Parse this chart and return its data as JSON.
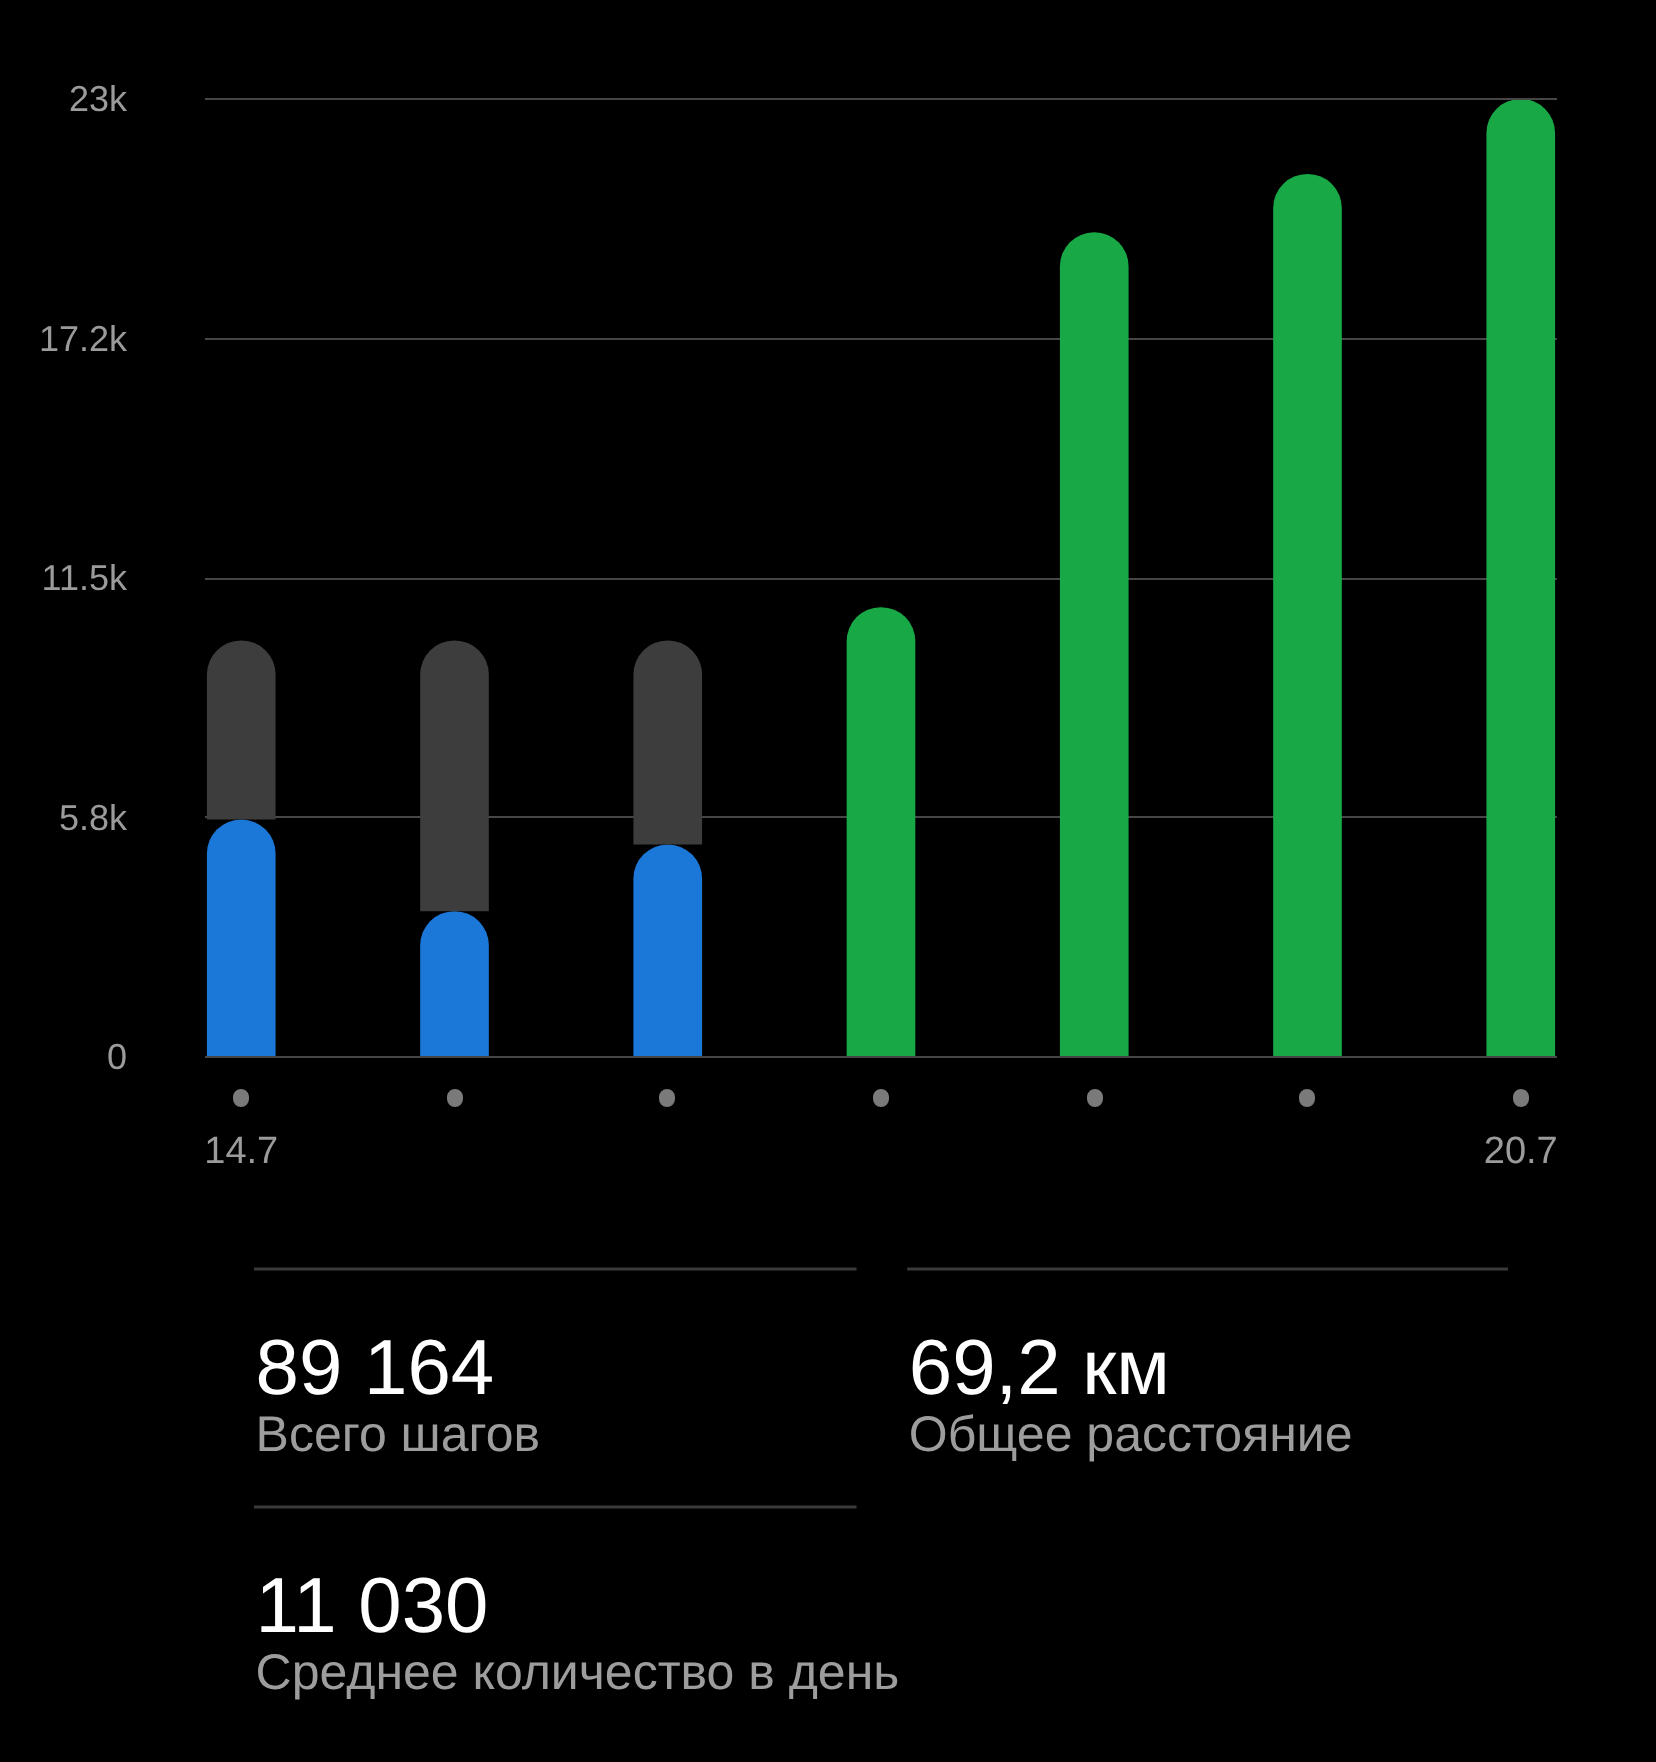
{
  "chart_data": {
    "type": "bar",
    "stacked": true,
    "categories": [
      "14.7",
      null,
      null,
      null,
      null,
      null,
      "20.7"
    ],
    "series": [
      {
        "color": "#1b78d8",
        "values": [
          5700,
          3500,
          5100,
          null,
          null,
          null,
          null
        ]
      },
      {
        "color": "#19a846",
        "values": [
          null,
          null,
          null,
          10800,
          19800,
          21200,
          23000
        ]
      },
      {
        "color": "#3d3d3d",
        "values": [
          4300,
          6500,
          4900,
          null,
          null,
          null,
          null
        ]
      }
    ],
    "ylim": [
      0,
      23000
    ],
    "yticks": [
      0,
      {
        "value": 5750,
        "label": "5.8k"
      },
      {
        "value": 11500,
        "label": "11.5k"
      },
      {
        "value": 17250,
        "label": "17.2k"
      },
      {
        "value": 23000,
        "label": "23k"
      }
    ],
    "grid": "y",
    "annotations": [
      "89 164",
      "Всего шагов",
      "69,2 км",
      "Общее расстояние",
      "11 030",
      "Среднее количество в день"
    ]
  }
}
